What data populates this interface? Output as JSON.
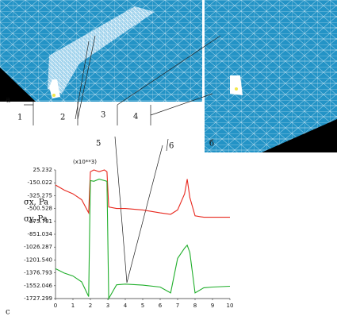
{
  "figure_labels": {
    "panel_a": "а",
    "panel_b": "б",
    "panel_c": "с",
    "l1": "1",
    "l2": "2",
    "l3": "3",
    "l4": "4",
    "l5": "5",
    "l6": "6"
  },
  "chart_data": {
    "type": "line",
    "ylabel": "(x10**3)",
    "x": [
      0,
      0.5,
      1,
      1.5,
      1.9,
      2,
      2.2,
      2.5,
      2.8,
      2.95,
      3.05,
      3.5,
      4,
      5,
      6,
      6.6,
      7,
      7.4,
      7.55,
      7.7,
      8,
      8.5,
      9,
      10
    ],
    "series": [
      {
        "name": "σx, Pa",
        "color": "#e8281e",
        "values": [
          -180,
          -250,
          -300,
          -380,
          -560,
          0,
          25,
          0,
          25,
          0,
          -480,
          -500,
          -500,
          -520,
          -560,
          -580,
          -520,
          -300,
          -100,
          -350,
          -600,
          -620,
          -620,
          -620
        ]
      },
      {
        "name": "σy, Pa",
        "color": "#1fae2a",
        "values": [
          -1320,
          -1380,
          -1420,
          -1500,
          -1700,
          -120,
          -130,
          -100,
          -120,
          -130,
          -1727,
          -1540,
          -1530,
          -1545,
          -1570,
          -1650,
          -1180,
          -1040,
          -1000,
          -1100,
          -1650,
          -1580,
          -1570,
          -1560
        ]
      }
    ],
    "xlim": [
      0,
      10
    ],
    "ylim": [
      -1727.299,
      25.232
    ],
    "xticks": [
      0,
      1,
      2,
      3,
      4,
      5,
      6,
      7,
      8,
      9,
      10
    ],
    "yticks": [
      25.232,
      -150.022,
      -325.275,
      -500.528,
      -675.781,
      -851.034,
      -1026.287,
      {
        "value": -1201.54,
        "label": "-1201.540"
      },
      -1376.793,
      -1552.046,
      -1727.299
    ]
  }
}
